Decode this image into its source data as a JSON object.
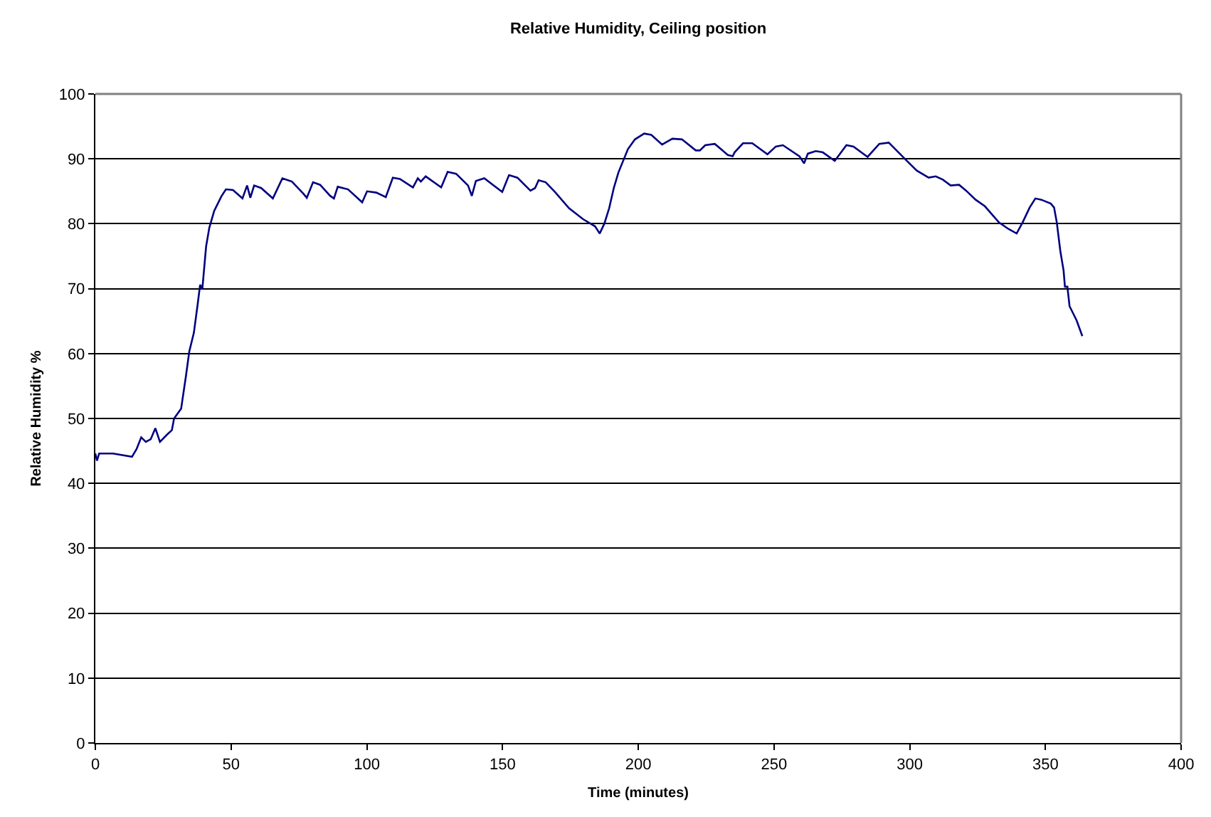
{
  "chart_data": {
    "type": "line",
    "title": "Relative Humidity, Ceiling position",
    "xlabel": "Time (minutes)",
    "ylabel": "Relative Humidity %",
    "series": [
      {
        "color": "#000080",
        "x": [
          0,
          0.6,
          1.4,
          6.5,
          13.5,
          15.2,
          16.9,
          18.6,
          20.4,
          22.1,
          23.8,
          26.4,
          28.2,
          29.0,
          31.6,
          33.4,
          34.6,
          36.3,
          37.7,
          38.6,
          39.4,
          40.8,
          42.0,
          43.8,
          46.4,
          48.1,
          50.7,
          54.2,
          55.9,
          57.1,
          58.5,
          61.1,
          65.4,
          68.9,
          72.4,
          76.7,
          77.9,
          80.2,
          82.8,
          86.5,
          87.9,
          89.3,
          93.1,
          98.3,
          100.1,
          103.5,
          107.0,
          109.6,
          112.2,
          117.0,
          118.8,
          119.9,
          121.7,
          127.4,
          129.8,
          132.9,
          137.3,
          138.7,
          140.2,
          143.3,
          149.9,
          152.4,
          155.5,
          160.3,
          162.0,
          163.3,
          165.9,
          169.3,
          174.5,
          179.7,
          184.1,
          185.8,
          187.5,
          189.3,
          191.0,
          192.7,
          196.2,
          198.8,
          202.2,
          204.8,
          208.8,
          210.5,
          212.6,
          216.1,
          221.2,
          222.7,
          224.7,
          228.2,
          233.0,
          234.8,
          235.5,
          238.6,
          242.0,
          247.6,
          250.7,
          253.3,
          259.4,
          261.1,
          262.5,
          265.4,
          268.0,
          272.4,
          276.7,
          279.3,
          284.5,
          288.8,
          292.3,
          297.5,
          302.6,
          307.0,
          309.6,
          312.2,
          315.1,
          318.2,
          320.8,
          324.3,
          327.7,
          332.9,
          336.4,
          339.4,
          341.6,
          344.2,
          346.3,
          348.5,
          352.0,
          353.2,
          354.2,
          355.5,
          356.7,
          357.2,
          358.1,
          358.9,
          361.5,
          363.6
        ],
        "values": [
          44.6,
          43.5,
          44.6,
          44.6,
          44.1,
          45.3,
          47.1,
          46.4,
          46.8,
          48.5,
          46.4,
          47.5,
          48.2,
          50.0,
          51.5,
          56.6,
          60.3,
          63.2,
          67.6,
          70.6,
          69.9,
          76.5,
          79.4,
          82.0,
          84.2,
          85.3,
          85.2,
          83.9,
          85.9,
          84.0,
          85.9,
          85.5,
          83.9,
          87.0,
          86.5,
          84.6,
          84.0,
          86.4,
          86.0,
          84.3,
          83.9,
          85.7,
          85.3,
          83.3,
          85.0,
          84.8,
          84.1,
          87.1,
          86.9,
          85.6,
          87.0,
          86.5,
          87.3,
          85.6,
          88.0,
          87.7,
          85.9,
          84.3,
          86.6,
          87.0,
          84.9,
          87.5,
          87.1,
          85.1,
          85.5,
          86.7,
          86.4,
          84.9,
          82.4,
          80.7,
          79.6,
          78.5,
          80.0,
          82.4,
          85.5,
          87.9,
          91.5,
          93.0,
          93.9,
          93.7,
          92.2,
          92.6,
          93.1,
          93.0,
          91.3,
          91.3,
          92.1,
          92.3,
          90.6,
          90.4,
          91.0,
          92.4,
          92.4,
          90.7,
          91.9,
          92.1,
          90.4,
          89.3,
          90.8,
          91.2,
          91.0,
          89.7,
          92.1,
          91.9,
          90.3,
          92.3,
          92.5,
          90.3,
          88.2,
          87.1,
          87.3,
          86.8,
          85.9,
          86.0,
          85.1,
          83.7,
          82.7,
          80.2,
          79.2,
          78.5,
          80.2,
          82.5,
          83.9,
          83.7,
          83.1,
          82.5,
          80.2,
          75.8,
          72.8,
          70.3,
          70.3,
          67.3,
          65.1,
          62.7
        ]
      }
    ],
    "xlim": [
      0,
      400
    ],
    "xticks": [
      0,
      50,
      100,
      150,
      200,
      250,
      300,
      350,
      400
    ],
    "ylim": [
      0,
      100
    ],
    "yticks": [
      0,
      10,
      20,
      30,
      40,
      50,
      60,
      70,
      80,
      90,
      100
    ],
    "grid": "y",
    "marker": "none",
    "line_style": "solid"
  }
}
